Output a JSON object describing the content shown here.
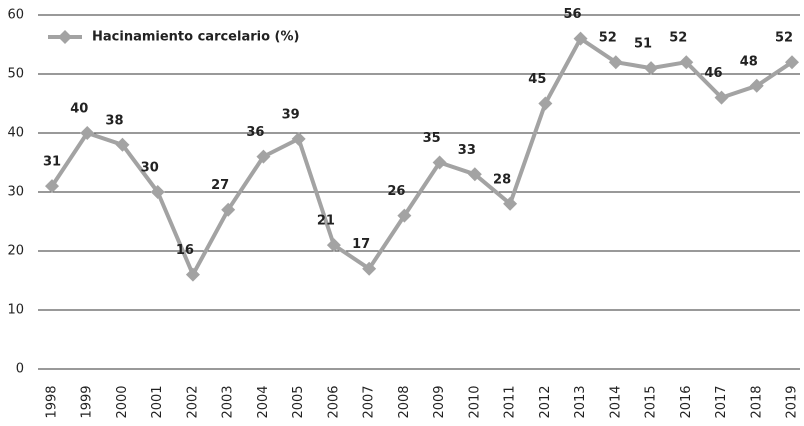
{
  "chart_data": {
    "type": "line",
    "categories": [
      "1998",
      "1999",
      "2000",
      "2001",
      "2002",
      "2003",
      "2004",
      "2005",
      "2006",
      "2007",
      "2008",
      "2009",
      "2010",
      "2011",
      "2012",
      "2013",
      "2014",
      "2015",
      "2016",
      "2017",
      "2018",
      "2019"
    ],
    "series": [
      {
        "name": "Hacinamiento carcelario (%)",
        "color": "#a3a3a3",
        "values": [
          31,
          40,
          38,
          30,
          16,
          27,
          36,
          39,
          21,
          17,
          26,
          35,
          33,
          28,
          45,
          56,
          52,
          51,
          52,
          46,
          48,
          52
        ]
      }
    ],
    "ylim": [
      0,
      60
    ],
    "yticks": [
      0,
      10,
      20,
      30,
      40,
      50,
      60
    ],
    "grid": true,
    "legend": "top-left",
    "data_labels": true
  }
}
